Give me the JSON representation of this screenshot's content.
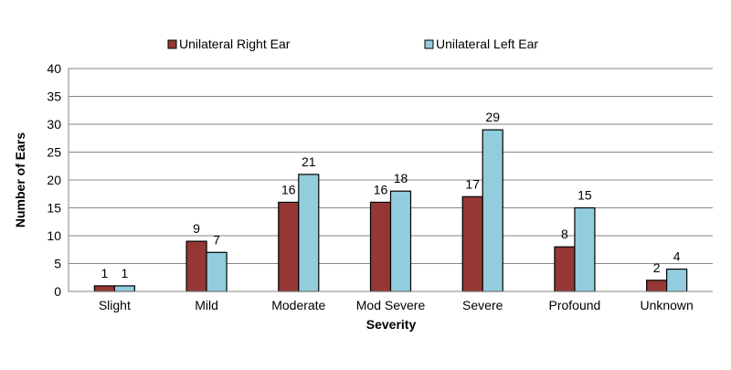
{
  "chart_data": {
    "type": "bar",
    "title": "",
    "xlabel": "Severity",
    "ylabel": "Number of Ears",
    "ylim": [
      0,
      40
    ],
    "yticks": [
      0,
      5,
      10,
      15,
      20,
      25,
      30,
      35,
      40
    ],
    "grid": true,
    "legend_position": "top",
    "categories": [
      "Slight",
      "Mild",
      "Moderate",
      "Mod Severe",
      "Severe",
      "Profound",
      "Unknown"
    ],
    "series": [
      {
        "name": "Unilateral Right Ear",
        "color": "#953735",
        "values": [
          1,
          9,
          16,
          16,
          17,
          8,
          2
        ]
      },
      {
        "name": "Unilateral Left Ear",
        "color": "#93CDDD",
        "values": [
          1,
          7,
          21,
          18,
          29,
          15,
          4
        ]
      }
    ]
  }
}
